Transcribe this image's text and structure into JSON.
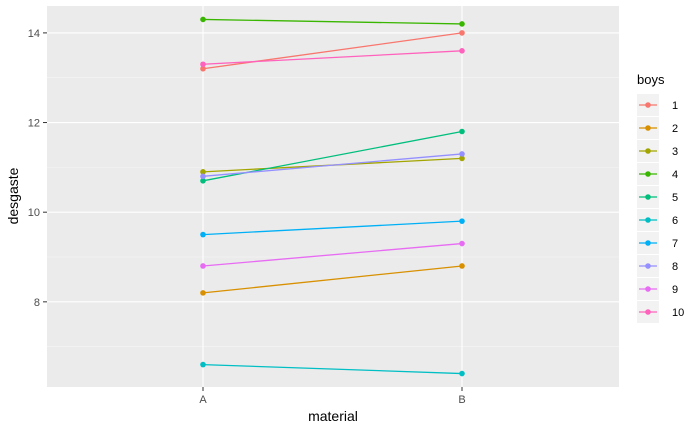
{
  "chart_data": {
    "type": "line",
    "title": "",
    "xlabel": "material",
    "ylabel": "desgaste",
    "categories": [
      "A",
      "B"
    ],
    "ylim": [
      6.1,
      14.6
    ],
    "yticks": [
      8,
      10,
      12,
      14
    ],
    "legend_title": "boys",
    "legend_position": "right",
    "grid": true,
    "series": [
      {
        "name": "1",
        "values": [
          13.2,
          14.0
        ],
        "color": "#F8766D"
      },
      {
        "name": "2",
        "values": [
          8.2,
          8.8
        ],
        "color": "#D89000"
      },
      {
        "name": "3",
        "values": [
          10.9,
          11.2
        ],
        "color": "#A3A500"
      },
      {
        "name": "4",
        "values": [
          14.3,
          14.2
        ],
        "color": "#39B600"
      },
      {
        "name": "5",
        "values": [
          10.7,
          11.8
        ],
        "color": "#00BF7D"
      },
      {
        "name": "6",
        "values": [
          6.6,
          6.4
        ],
        "color": "#00BFC4"
      },
      {
        "name": "7",
        "values": [
          9.5,
          9.8
        ],
        "color": "#00B0F6"
      },
      {
        "name": "8",
        "values": [
          10.8,
          11.3
        ],
        "color": "#9590FF"
      },
      {
        "name": "9",
        "values": [
          8.8,
          9.3
        ],
        "color": "#E76BF3"
      },
      {
        "name": "10",
        "values": [
          13.3,
          13.6
        ],
        "color": "#FF62BC"
      }
    ]
  }
}
